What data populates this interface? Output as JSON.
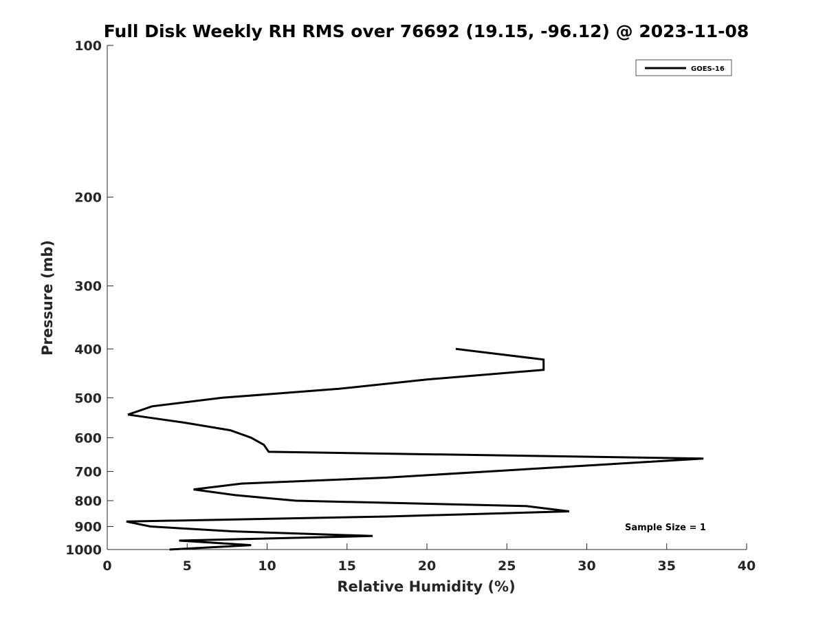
{
  "chart_data": {
    "type": "line",
    "title": "Full Disk Weekly RH RMS over 76692 (19.15, -96.12) @ 2023-11-08",
    "xlabel": "Relative Humidity (%)",
    "ylabel": "Pressure (mb)",
    "xlim": [
      0,
      40
    ],
    "ylim": [
      100,
      1000
    ],
    "y_scale": "log",
    "y_reversed": true,
    "grid": false,
    "legend_position": "top-right",
    "x_ticks": [
      "0",
      "5",
      "10",
      "15",
      "20",
      "25",
      "30",
      "35",
      "40"
    ],
    "y_ticks": [
      "100",
      "200",
      "300",
      "400",
      "500",
      "600",
      "700",
      "800",
      "900",
      "1000"
    ],
    "series": [
      {
        "name": "GOES-16",
        "color": "#000000",
        "points": [
          {
            "x": 21.8,
            "y": 400
          },
          {
            "x": 27.3,
            "y": 420
          },
          {
            "x": 27.3,
            "y": 440
          },
          {
            "x": 20.0,
            "y": 460
          },
          {
            "x": 14.5,
            "y": 480
          },
          {
            "x": 7.2,
            "y": 500
          },
          {
            "x": 2.8,
            "y": 520
          },
          {
            "x": 1.3,
            "y": 540
          },
          {
            "x": 4.8,
            "y": 560
          },
          {
            "x": 7.7,
            "y": 580
          },
          {
            "x": 9.0,
            "y": 600
          },
          {
            "x": 9.8,
            "y": 620
          },
          {
            "x": 10.1,
            "y": 640
          },
          {
            "x": 37.3,
            "y": 660
          },
          {
            "x": 17.5,
            "y": 720
          },
          {
            "x": 8.4,
            "y": 740
          },
          {
            "x": 5.4,
            "y": 760
          },
          {
            "x": 8.0,
            "y": 780
          },
          {
            "x": 11.8,
            "y": 800
          },
          {
            "x": 26.2,
            "y": 820
          },
          {
            "x": 28.9,
            "y": 840
          },
          {
            "x": 17.5,
            "y": 860
          },
          {
            "x": 1.2,
            "y": 880
          },
          {
            "x": 2.7,
            "y": 900
          },
          {
            "x": 7.8,
            "y": 920
          },
          {
            "x": 16.6,
            "y": 940
          },
          {
            "x": 4.5,
            "y": 960
          },
          {
            "x": 9.0,
            "y": 980
          },
          {
            "x": 3.9,
            "y": 1000
          }
        ]
      }
    ],
    "annotations": [
      "Sample Size = 1"
    ]
  }
}
